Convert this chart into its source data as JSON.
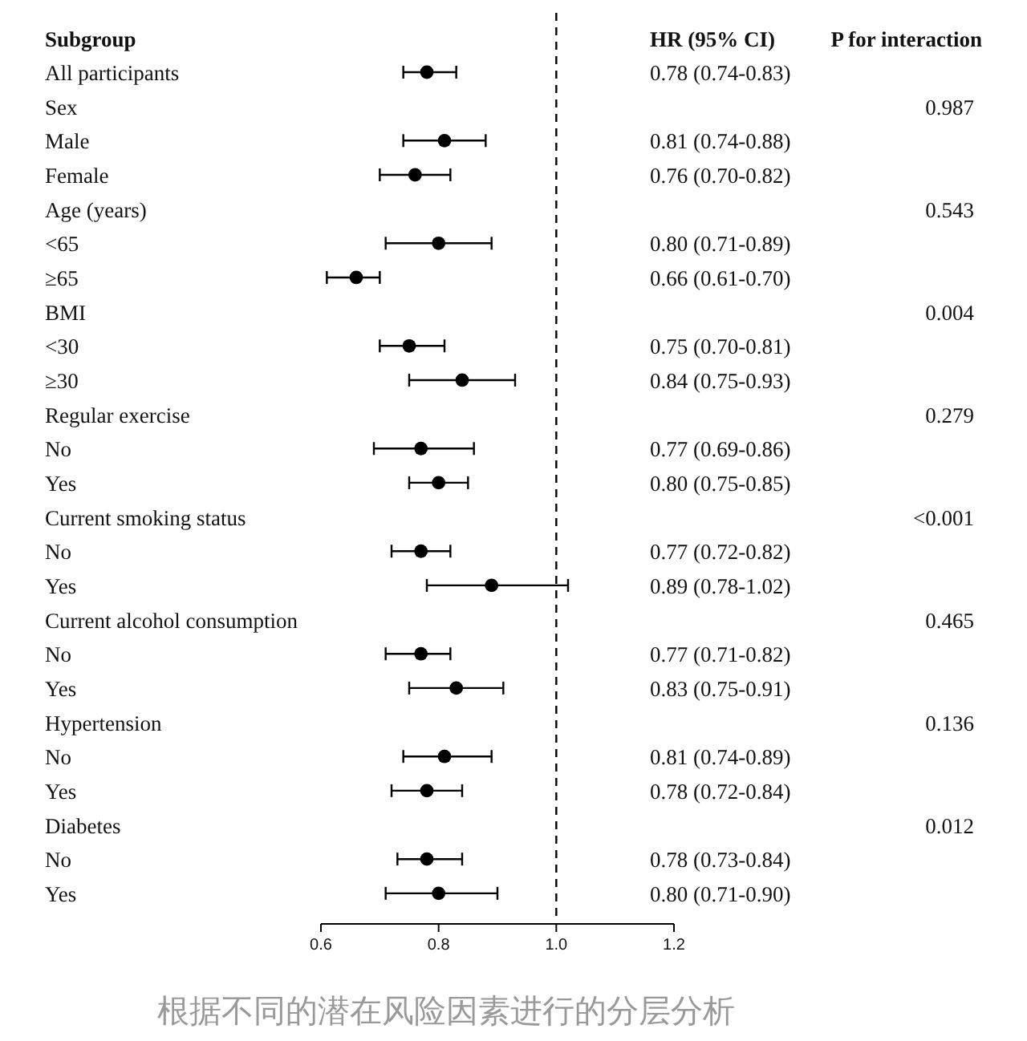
{
  "chart_data": {
    "type": "scatter",
    "orientation": "horizontal",
    "ylabel": "Subgroup",
    "categories": [
      "All participants",
      "Sex",
      "Male",
      "Female",
      "Age (years)",
      "<65",
      "≥65",
      "BMI",
      "<30",
      "≥30",
      "Regular exercise",
      "No",
      "Yes",
      "Current smoking status",
      "No",
      "Yes",
      "Current alcohol consumption",
      "No",
      "Yes",
      "Hypertension",
      "No",
      "Yes",
      "Diabetes",
      "No",
      "Yes"
    ],
    "values": [
      0.78,
      null,
      0.81,
      0.76,
      null,
      0.8,
      0.66,
      null,
      0.75,
      0.84,
      null,
      0.77,
      0.8,
      null,
      0.77,
      0.89,
      null,
      0.77,
      0.83,
      null,
      0.81,
      0.78,
      null,
      0.78,
      0.8
    ],
    "errors": [
      [
        0.74,
        0.83
      ],
      null,
      [
        0.74,
        0.88
      ],
      [
        0.7,
        0.82
      ],
      null,
      [
        0.71,
        0.89
      ],
      [
        0.61,
        0.7
      ],
      null,
      [
        0.7,
        0.81
      ],
      [
        0.75,
        0.93
      ],
      null,
      [
        0.69,
        0.86
      ],
      [
        0.75,
        0.85
      ],
      null,
      [
        0.72,
        0.82
      ],
      [
        0.78,
        1.02
      ],
      null,
      [
        0.71,
        0.82
      ],
      [
        0.75,
        0.91
      ],
      null,
      [
        0.74,
        0.89
      ],
      [
        0.72,
        0.84
      ],
      null,
      [
        0.73,
        0.84
      ],
      [
        0.71,
        0.9
      ]
    ],
    "value_labels": [
      "0.78 (0.74-0.83)",
      null,
      "0.81 (0.74-0.88)",
      "0.76 (0.70-0.82)",
      null,
      "0.80 (0.71-0.89)",
      "0.66 (0.61-0.70)",
      null,
      "0.75 (0.70-0.81)",
      "0.84 (0.75-0.93)",
      null,
      "0.77 (0.69-0.86)",
      "0.80 (0.75-0.85)",
      null,
      "0.77 (0.72-0.82)",
      "0.89 (0.78-1.02)",
      null,
      "0.77 (0.71-0.82)",
      "0.83 (0.75-0.91)",
      null,
      "0.81 (0.74-0.89)",
      "0.78 (0.72-0.84)",
      null,
      "0.78 (0.73-0.84)",
      "0.80 (0.71-0.90)"
    ],
    "color": "#000000",
    "marker": "circle",
    "xlim": [
      0.6,
      1.2
    ],
    "xticks": [
      0.6,
      0.8,
      {
        "value": 1.0,
        "label": "1.0"
      },
      1.2
    ],
    "ref_lines": [
      {
        "axis": "x",
        "value": 1.0,
        "line_style": "dashed"
      }
    ],
    "annotations": [
      "HR (95% CI)",
      "P for interaction",
      "0.987",
      "0.543",
      "0.004",
      "0.279",
      "<0.001",
      "0.465",
      "0.136",
      "0.012",
      "根据不同的潜在风险因素进行的分层分析"
    ],
    "line_style": "solid"
  }
}
